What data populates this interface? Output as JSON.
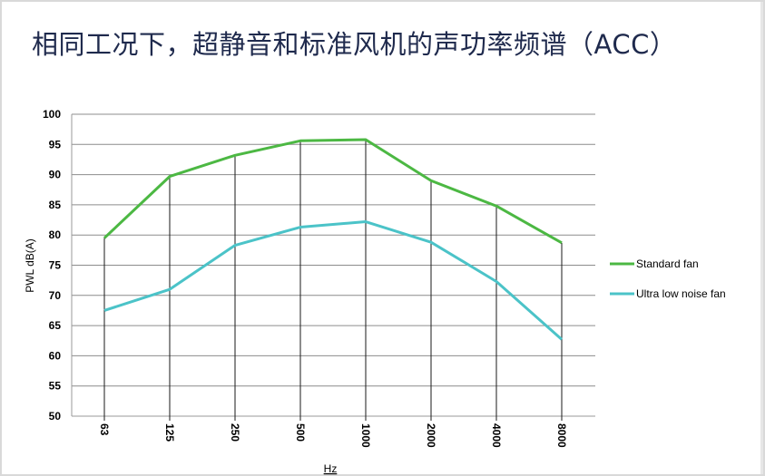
{
  "slide": {
    "title": "相同工况下，超静音和标准风机的声功率频谱（ACC）"
  },
  "chart_data": {
    "type": "line",
    "title": "相同工况下，超静音和标准风机的声功率频谱（ACC）",
    "xlabel": "Hz",
    "ylabel": "PWL  dB(A)",
    "categories": [
      "63",
      "125",
      "250",
      "500",
      "1000",
      "2000",
      "4000",
      "8000"
    ],
    "ylim": [
      50,
      100
    ],
    "yticks": [
      50,
      55,
      60,
      65,
      70,
      75,
      80,
      85,
      90,
      95,
      100
    ],
    "grid": true,
    "legend_position": "right",
    "series": [
      {
        "name": "Standard fan",
        "color": "#4cb843",
        "values": [
          79.5,
          89.7,
          93.2,
          95.6,
          95.8,
          89.0,
          84.8,
          78.7
        ]
      },
      {
        "name": "Ultra low noise fan",
        "color": "#4bc3c8",
        "values": [
          67.5,
          71.0,
          78.3,
          81.3,
          82.2,
          78.8,
          72.3,
          62.7
        ]
      }
    ]
  }
}
